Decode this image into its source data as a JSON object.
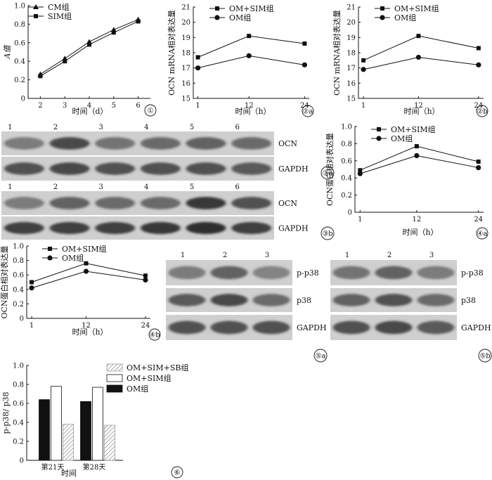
{
  "circle_labels": [
    "①",
    "②a",
    "②b",
    "③a",
    "③b",
    "④a",
    "④b",
    "⑤a",
    "⑤b",
    "⑥"
  ],
  "chart_data": [
    {
      "id": "p1",
      "type": "line",
      "panel_label": "①",
      "xlabel": "时间（d）",
      "ylabel": "A值",
      "x": [
        2,
        3,
        4,
        5,
        6
      ],
      "xlim": [
        1.5,
        6.5
      ],
      "ylim": [
        0,
        1.0
      ],
      "yticks": [
        0,
        0.2,
        0.4,
        0.6,
        0.8,
        1.0
      ],
      "series": [
        {
          "name": "CM组",
          "marker": "triangle",
          "values": [
            0.26,
            0.43,
            0.61,
            0.74,
            0.85
          ]
        },
        {
          "name": "SIM组",
          "marker": "square",
          "values": [
            0.24,
            0.4,
            0.58,
            0.71,
            0.83
          ]
        }
      ],
      "legend": "top-left"
    },
    {
      "id": "p2a",
      "type": "line",
      "panel_label": "②a",
      "xlabel": "时间（h）",
      "ylabel": "OCN mRNA相对表达量",
      "x": [
        1,
        12,
        24
      ],
      "xlim": [
        0,
        25
      ],
      "ylim": [
        15,
        21
      ],
      "yticks": [
        15,
        16,
        17,
        18,
        19,
        20,
        21
      ],
      "series": [
        {
          "name": "OM+SIM组",
          "marker": "square",
          "values": [
            17.7,
            19.1,
            18.6
          ]
        },
        {
          "name": "OM组",
          "marker": "circle",
          "values": [
            17.0,
            17.8,
            17.2
          ]
        }
      ],
      "legend": "top"
    },
    {
      "id": "p2b",
      "type": "line",
      "panel_label": "②b",
      "xlabel": "时间（h）",
      "ylabel": "OCN mRNA相对表达量",
      "x": [
        1,
        12,
        24
      ],
      "xlim": [
        0,
        25
      ],
      "ylim": [
        15,
        21
      ],
      "yticks": [
        15,
        16,
        17,
        18,
        19,
        20,
        21
      ],
      "series": [
        {
          "name": "OM+SIM组",
          "marker": "square",
          "values": [
            17.5,
            19.1,
            18.3
          ]
        },
        {
          "name": "OM组",
          "marker": "circle",
          "values": [
            16.9,
            17.7,
            17.2
          ]
        }
      ],
      "legend": "top"
    },
    {
      "id": "p4a",
      "type": "line",
      "panel_label": "④a",
      "xlabel": "时间（h）",
      "ylabel": "OCN蛋白相对表达量",
      "x": [
        1,
        12,
        24
      ],
      "xlim": [
        0,
        25
      ],
      "ylim": [
        0,
        1.0
      ],
      "yticks": [
        0,
        0.2,
        0.4,
        0.6,
        0.8,
        1.0
      ],
      "series": [
        {
          "name": "OM+SIM组",
          "marker": "square",
          "values": [
            0.49,
            0.77,
            0.59
          ]
        },
        {
          "name": "OM组",
          "marker": "circle",
          "values": [
            0.45,
            0.66,
            0.52
          ]
        }
      ],
      "legend": "top"
    },
    {
      "id": "p4b",
      "type": "line",
      "panel_label": "④b",
      "xlabel": "时间（h）",
      "ylabel": "OCN蛋白相对表达量",
      "x": [
        1,
        12,
        24
      ],
      "xlim": [
        0,
        25
      ],
      "ylim": [
        0,
        1.0
      ],
      "yticks": [
        0,
        0.2,
        0.4,
        0.6,
        0.8,
        1.0
      ],
      "series": [
        {
          "name": "OM+SIM组",
          "marker": "square",
          "values": [
            0.5,
            0.76,
            0.59
          ]
        },
        {
          "name": "OM组",
          "marker": "circle",
          "values": [
            0.42,
            0.65,
            0.53
          ]
        }
      ],
      "legend": "top"
    },
    {
      "id": "p6",
      "type": "bar",
      "panel_label": "⑥",
      "xlabel": "时间",
      "ylabel": "p-p38/ p38",
      "categories": [
        "第21天",
        "第28天"
      ],
      "ylim": [
        0,
        1.0
      ],
      "yticks": [
        0,
        0.2,
        0.4,
        0.6,
        0.8,
        1.0
      ],
      "series": [
        {
          "name": "OM组",
          "fill": "solid",
          "values": [
            0.64,
            0.62
          ]
        },
        {
          "name": "OM+SIM组",
          "fill": "open",
          "values": [
            0.78,
            0.77
          ]
        },
        {
          "name": "OM+SIM+SB组",
          "fill": "hatched",
          "values": [
            0.38,
            0.37
          ]
        }
      ],
      "legend_order": [
        "OM+SIM+SB组",
        "OM+SIM组",
        "OM组"
      ],
      "legend": "right"
    }
  ],
  "blots": [
    {
      "id": "b3a",
      "panel_label": "③a",
      "lanes": [
        "1",
        "2",
        "3",
        "4",
        "5",
        "6"
      ],
      "rows": [
        {
          "label": "OCN",
          "intensity": [
            0.45,
            0.75,
            0.5,
            0.55,
            0.6,
            0.55
          ]
        },
        {
          "label": "GAPDH",
          "intensity": [
            0.7,
            0.75,
            0.7,
            0.7,
            0.7,
            0.65
          ]
        }
      ]
    },
    {
      "id": "b3b",
      "panel_label": "③b",
      "lanes": [
        "1",
        "2",
        "3",
        "4",
        "5",
        "6"
      ],
      "rows": [
        {
          "label": "OCN",
          "intensity": [
            0.45,
            0.6,
            0.55,
            0.55,
            0.85,
            0.7
          ]
        },
        {
          "label": "GAPDH",
          "intensity": [
            0.8,
            0.8,
            0.8,
            0.85,
            0.9,
            0.8
          ]
        }
      ]
    },
    {
      "id": "b5a",
      "panel_label": "⑤a",
      "lanes": [
        "1",
        "2",
        "3"
      ],
      "rows": [
        {
          "label": "p-p38",
          "intensity": [
            0.45,
            0.6,
            0.4
          ]
        },
        {
          "label": "p38",
          "intensity": [
            0.65,
            0.75,
            0.55
          ]
        },
        {
          "label": "GAPDH",
          "intensity": [
            0.7,
            0.7,
            0.7
          ]
        }
      ]
    },
    {
      "id": "b5b",
      "panel_label": "⑤b",
      "lanes": [
        "1",
        "2",
        "3"
      ],
      "rows": [
        {
          "label": "p-p38",
          "intensity": [
            0.5,
            0.6,
            0.45
          ]
        },
        {
          "label": "p38",
          "intensity": [
            0.6,
            0.7,
            0.55
          ]
        },
        {
          "label": "GAPDH",
          "intensity": [
            0.7,
            0.75,
            0.65
          ]
        }
      ]
    }
  ]
}
